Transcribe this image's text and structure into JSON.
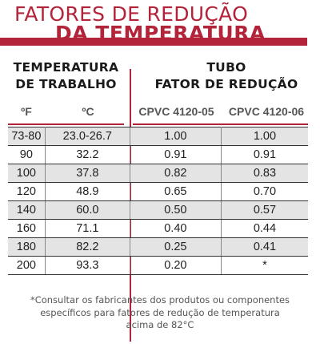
{
  "header": {
    "title_line1": "FATORES DE REDUÇÃO",
    "title_line2": "DA TEMPERATURA"
  },
  "left_header": {
    "line1": "TEMPERATURA",
    "line2": "DE TRABALHO"
  },
  "right_header": {
    "line1": "TUBO",
    "line2": "FATOR DE REDUÇÃO"
  },
  "columns": {
    "fahrenheit": "ºF",
    "celsius": "ºC",
    "product1": "CPVC 4120-05",
    "product2": "CPVC 4120-06"
  },
  "rows": [
    {
      "f": "73-80",
      "c": "23.0-26.7",
      "p1": "1.00",
      "p2": "1.00"
    },
    {
      "f": "90",
      "c": "32.2",
      "p1": "0.91",
      "p2": "0.91"
    },
    {
      "f": "100",
      "c": "37.8",
      "p1": "0.82",
      "p2": "0.83"
    },
    {
      "f": "120",
      "c": "48.9",
      "p1": "0.65",
      "p2": "0.70"
    },
    {
      "f": "140",
      "c": "60.0",
      "p1": "0.50",
      "p2": "0.57"
    },
    {
      "f": "160",
      "c": "71.1",
      "p1": "0.40",
      "p2": "0.44"
    },
    {
      "f": "180",
      "c": "82.2",
      "p1": "0.25",
      "p2": "0.41"
    },
    {
      "f": "200",
      "c": "93.3",
      "p1": "0.20",
      "p2": "*"
    }
  ],
  "footnote": {
    "line1": "*Consultar os fabricantes dos produtos ou componentes",
    "line2": "específicos para fatores de redução de temperatura",
    "line3": "acima de 82°C"
  },
  "colors": {
    "accent": "#b3243a",
    "row_shade": "#e4e4e4"
  }
}
